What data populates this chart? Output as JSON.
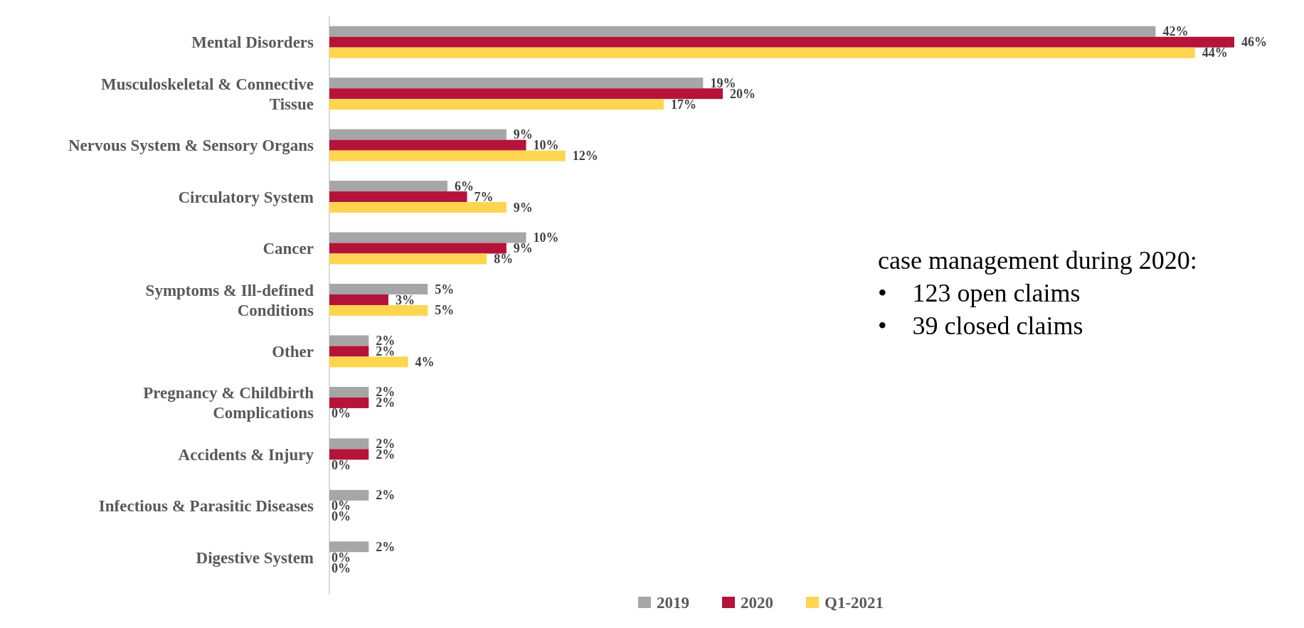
{
  "chart_data": {
    "type": "bar",
    "orientation": "horizontal",
    "categories": [
      "Mental Disorders",
      "Musculoskeletal & Connective Tissue",
      "Nervous System & Sensory Organs",
      "Circulatory System",
      "Cancer",
      "Symptoms & Ill-defined Conditions",
      "Other",
      "Pregnancy & Childbirth Complications",
      "Accidents & Injury",
      "Infectious & Parasitic Diseases",
      "Digestive System"
    ],
    "series": [
      {
        "name": "2019",
        "color": "#a6a6a6",
        "values": [
          42,
          19,
          9,
          6,
          10,
          5,
          2,
          2,
          2,
          2,
          2
        ],
        "value_labels": [
          "42%",
          "19%",
          "9%",
          "6%",
          "10%",
          "5%",
          "2%",
          "2%",
          "2%",
          "2%",
          "2%"
        ]
      },
      {
        "name": "2020",
        "color": "#b5133a",
        "values": [
          46,
          20,
          10,
          7,
          9,
          3,
          2,
          2,
          2,
          0,
          0
        ],
        "value_labels": [
          "46%",
          "20%",
          "10%",
          "7%",
          "9%",
          "3%",
          "2%",
          "2%",
          "2%",
          "0%",
          "0%"
        ]
      },
      {
        "name": "Q1-2021",
        "color": "#ffd54f",
        "values": [
          44,
          17,
          12,
          9,
          8,
          5,
          4,
          0,
          0,
          0,
          0
        ],
        "value_labels": [
          "44%",
          "17%",
          "12%",
          "9%",
          "8%",
          "5%",
          "4%",
          "0%",
          "0%",
          "0%",
          "0%"
        ]
      }
    ],
    "legend": "bottom",
    "annotations": [
      "case management during 2020:",
      "•    123 open claims",
      "•    39 closed claims"
    ]
  }
}
